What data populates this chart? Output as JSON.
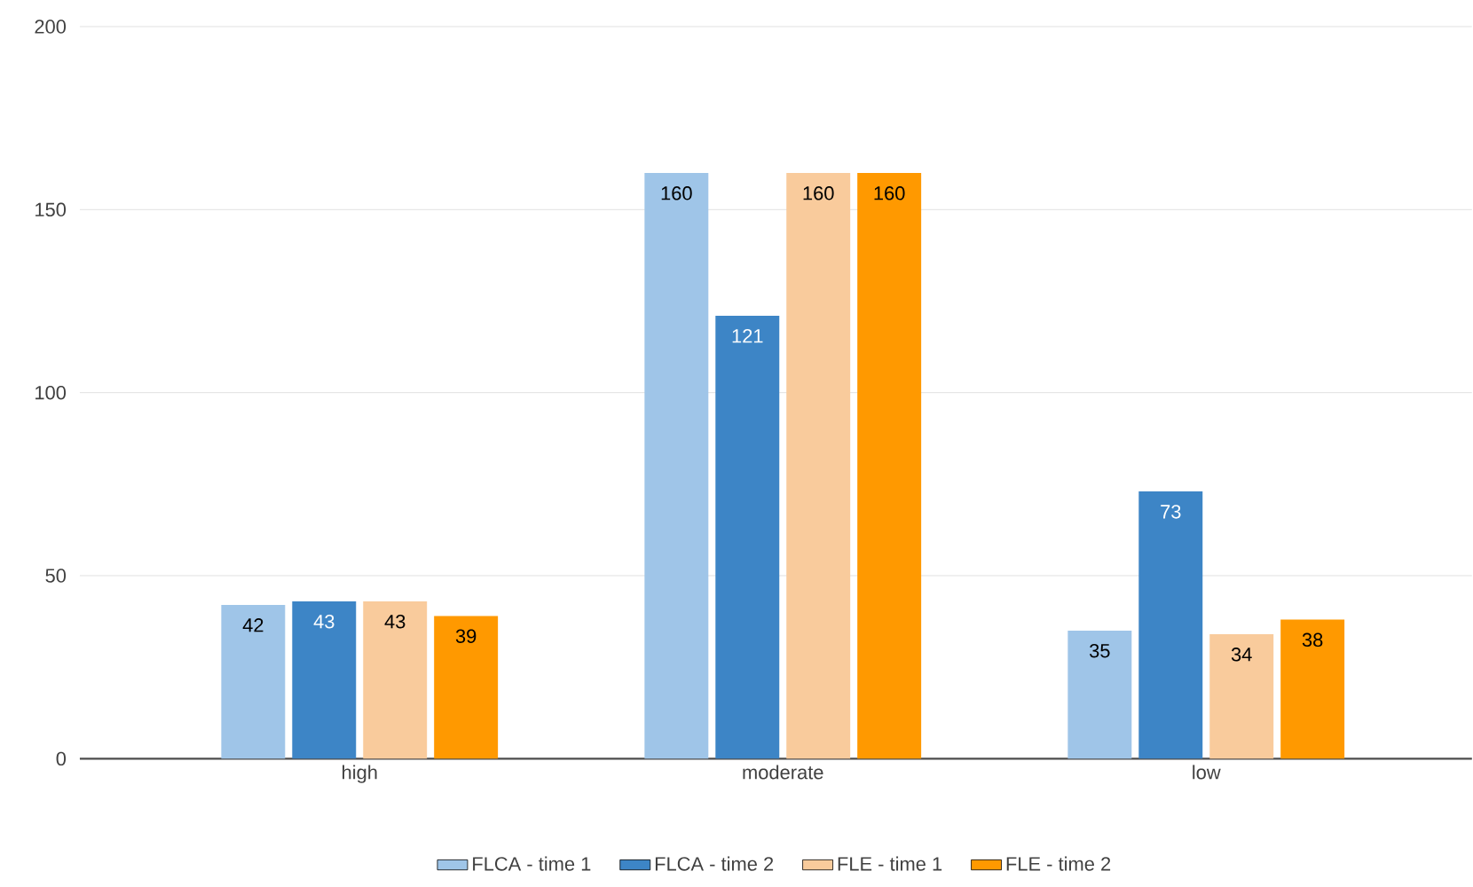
{
  "chart_data": {
    "type": "bar",
    "categories": [
      "high",
      "moderate",
      "low"
    ],
    "series": [
      {
        "name": "FLCA - time 1",
        "color": "#9fc5e8",
        "values": [
          42,
          160,
          35
        ]
      },
      {
        "name": "FLCA - time 2",
        "color": "#3d85c6",
        "values": [
          43,
          121,
          73
        ]
      },
      {
        "name": "FLE - time 1",
        "color": "#f9cb9c",
        "values": [
          43,
          160,
          34
        ]
      },
      {
        "name": "FLE - time 2",
        "color": "#ff9900",
        "values": [
          39,
          160,
          38
        ]
      }
    ],
    "ylim": [
      0,
      200
    ],
    "yticks": [
      0,
      50,
      100,
      150,
      200
    ],
    "grid": "y",
    "legend": "bottom",
    "data_labels": true
  }
}
